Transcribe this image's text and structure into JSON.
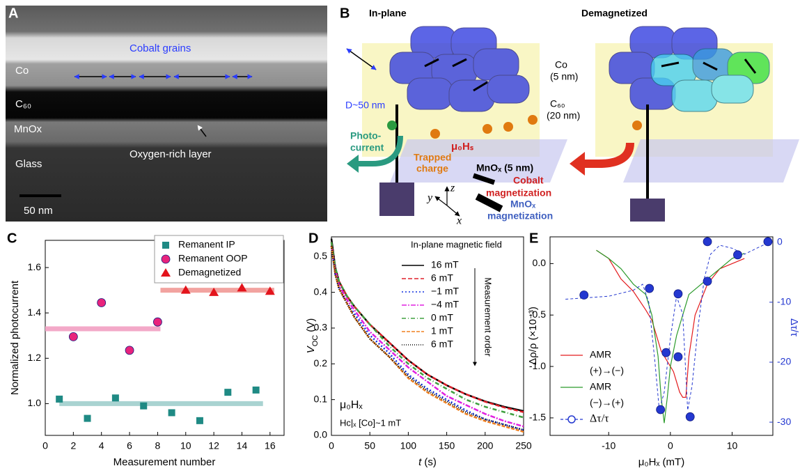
{
  "panel_a": {
    "label": "A",
    "grain_label": "Cobalt grains",
    "layers": [
      "Co",
      "C₆₀",
      "MnOx",
      "Glass"
    ],
    "oxygen_label": "Oxygen-rich layer",
    "scale_bar": "50 nm"
  },
  "panel_b": {
    "label": "B",
    "states": [
      "In-plane",
      "Demagnetized"
    ],
    "co_layer": [
      "Co",
      "(5 nm)"
    ],
    "grain_size": "D~50 nm",
    "c60_layer": [
      "C₆₀",
      "(20 nm)"
    ],
    "photocurrent": [
      "Photo-",
      "current"
    ],
    "trapped": [
      "Trapped",
      "charge"
    ],
    "field": "μ₀Hₛ",
    "mnox_layer": "MnOₓ (5 nm)",
    "cobalt_mag": [
      "Cobalt",
      "magnetization"
    ],
    "mnox_mag": [
      "MnOₓ",
      "magnetization"
    ],
    "axes": [
      "y",
      "z",
      "x"
    ]
  },
  "chart_data": [
    {
      "panel": "C",
      "type": "scatter",
      "xlabel": "Measurement number",
      "ylabel": "Normalized photocurrent",
      "xlim": [
        0,
        17
      ],
      "xticks": [
        0,
        2,
        4,
        6,
        8,
        10,
        12,
        14,
        16
      ],
      "ylim": [
        0.86,
        1.72
      ],
      "yticks": [
        {
          "value": 1,
          "label": "1.0"
        },
        1.2,
        1.4,
        1.6
      ],
      "legend": "upper right",
      "series": [
        {
          "name": "Remanent IP",
          "color": "#1f8a84",
          "marker": "square",
          "x": [
            1,
            3,
            5,
            7,
            9,
            11,
            13,
            15
          ],
          "values": [
            1.02,
            0.935,
            1.025,
            0.99,
            0.96,
            0.925,
            1.05,
            1.06
          ],
          "mean": 1.0,
          "mean_x": [
            1,
            15.5
          ],
          "mean_color": "#a9d3d1"
        },
        {
          "name": "Remanent OOP",
          "color": "#e8237c",
          "marker": "circle",
          "x": [
            2,
            4,
            6,
            8
          ],
          "values": [
            1.295,
            1.445,
            1.235,
            1.36
          ],
          "mean": 1.33,
          "mean_x": [
            0,
            8.2
          ],
          "mean_color": "#f3a9c8"
        },
        {
          "name": "Demagnetized",
          "color": "#e3141c",
          "marker": "triangle",
          "x": [
            10,
            12,
            14,
            16
          ],
          "values": [
            1.5,
            1.49,
            1.51,
            1.495
          ],
          "mean": 1.5,
          "mean_x": [
            8.2,
            16.3
          ],
          "mean_color": "#f2a3a0"
        }
      ]
    },
    {
      "panel": "D",
      "type": "line",
      "title": "In-plane magnetic field",
      "annotations": [
        "Measurement order",
        "μ₀Hₓ",
        "Hc|ₓ [Co]~1 mT"
      ],
      "xlabel": {
        "text": "t",
        "unit": "(s)"
      },
      "ylabel": {
        "text": "V",
        "sub": "OC",
        "unit": "(V)"
      },
      "xlim": [
        0,
        250
      ],
      "xticks": [
        0,
        50,
        100,
        150,
        200,
        250
      ],
      "ylim": [
        0,
        0.555
      ],
      "yticks": [
        {
          "value": 0,
          "label": "0.0"
        },
        0.1,
        0.2,
        0.3,
        0.4,
        0.5
      ],
      "legend": "upper right",
      "x": [
        0,
        5,
        10,
        20,
        30,
        50,
        75,
        100,
        125,
        150,
        175,
        200,
        225,
        250
      ],
      "series": [
        {
          "name": "16 mT",
          "color": "#000000",
          "dash": "none",
          "values": [
            0.55,
            0.47,
            0.43,
            0.39,
            0.36,
            0.31,
            0.26,
            0.21,
            0.17,
            0.14,
            0.115,
            0.095,
            0.08,
            0.068
          ]
        },
        {
          "name": "6 mT",
          "color": "#e0202a",
          "dash": "6,3",
          "values": [
            0.54,
            0.46,
            0.43,
            0.39,
            0.36,
            0.31,
            0.26,
            0.21,
            0.17,
            0.14,
            0.115,
            0.094,
            0.078,
            0.065
          ]
        },
        {
          "name": "−1 mT",
          "color": "#1030e0",
          "dash": "2,3",
          "values": [
            0.53,
            0.45,
            0.41,
            0.37,
            0.34,
            0.28,
            0.23,
            0.17,
            0.13,
            0.1,
            0.07,
            0.045,
            0.03,
            0.015
          ]
        },
        {
          "name": "−4 mT",
          "color": "#e020e0",
          "dash": "7,2,2,2",
          "values": [
            0.53,
            0.46,
            0.42,
            0.38,
            0.35,
            0.29,
            0.24,
            0.19,
            0.15,
            0.11,
            0.085,
            0.06,
            0.04,
            0.025
          ]
        },
        {
          "name": "0 mT",
          "color": "#40a040",
          "dash": "6,3,1,3",
          "values": [
            0.54,
            0.47,
            0.43,
            0.39,
            0.36,
            0.31,
            0.25,
            0.2,
            0.16,
            0.13,
            0.1,
            0.08,
            0.065,
            0.05
          ]
        },
        {
          "name": "1 mT",
          "color": "#f08020",
          "dash": "5,2",
          "values": [
            0.53,
            0.45,
            0.41,
            0.37,
            0.33,
            0.27,
            0.22,
            0.16,
            0.12,
            0.09,
            0.06,
            0.04,
            0.025,
            0.01
          ]
        },
        {
          "name": "6 mT",
          "color": "#000000",
          "dash": "1,2",
          "values": [
            0.53,
            0.45,
            0.41,
            0.37,
            0.33,
            0.27,
            0.22,
            0.165,
            0.125,
            0.095,
            0.065,
            0.045,
            0.03,
            0.015
          ]
        }
      ]
    },
    {
      "panel": "E",
      "type": "line",
      "xlabel": "μ₀Hₓ (mT)",
      "ylabel": "Δρ/ρ (×10⁻³)",
      "y2label": "Δτ/τ",
      "xlim": [
        -19.5,
        16.6
      ],
      "xticks": [
        -10,
        0,
        10
      ],
      "ylim": [
        -1.67,
        0.26
      ],
      "yticks": [
        {
          "value": 0,
          "label": "0.0"
        },
        -0.5,
        {
          "value": -1,
          "label": "-1.0"
        },
        -1.5
      ],
      "y2lim": [
        -32.2,
        0.9
      ],
      "y2ticks": [
        0,
        -10,
        -20,
        -30
      ],
      "legend": "lower left",
      "x": [
        -12,
        -10,
        -8,
        -6,
        -4,
        -3,
        -2,
        -1.5,
        -1,
        -0.5,
        0,
        0.5,
        1,
        1.5,
        2,
        2.5,
        3,
        4,
        6,
        8,
        10,
        12
      ],
      "series": [
        {
          "name": "AMR",
          "direction": "(+)→(−)",
          "color": "#e31a1c",
          "values": [
            0.13,
            0.05,
            -0.15,
            -0.27,
            -0.45,
            -0.55,
            -0.75,
            -0.85,
            -0.9,
            -0.95,
            -1.0,
            -1.05,
            -1.15,
            -1.25,
            -1.3,
            -1.3,
            -0.9,
            -0.5,
            -0.2,
            -0.05,
            0.0,
            0.05
          ]
        },
        {
          "name": "AMR",
          "direction": "(−)→(+)",
          "color": "#2a9a2a",
          "values": [
            0.13,
            0.05,
            -0.05,
            -0.2,
            -0.3,
            -0.5,
            -0.9,
            -1.3,
            -1.55,
            -1.3,
            -1.0,
            -0.85,
            -0.7,
            -0.6,
            -0.5,
            -0.4,
            -0.3,
            -0.25,
            -0.15,
            -0.05,
            0.05,
            0.1
          ]
        },
        {
          "name": "Δτ/τ",
          "color": "#2438d0",
          "axis": "y2",
          "marker": "circle",
          "x": [
            -14,
            -3.4,
            -1.6,
            -0.7,
            1.25,
            1.25,
            3.2,
            6,
            6,
            10.9,
            15.8
          ],
          "values": [
            -8.8,
            -7.7,
            -27.9,
            -18.4,
            -8.6,
            -19.1,
            -29.1,
            0.1,
            -6.5,
            -2.1,
            0.1
          ],
          "fit_x": [
            -17,
            -10,
            -6,
            -4.5,
            -3.5,
            -2.5,
            -1.8,
            -1,
            0,
            1,
            2,
            2.8,
            3.5,
            4.5,
            5.5,
            6.5,
            8,
            10,
            12,
            16
          ],
          "fit_values": [
            -9.5,
            -9,
            -8,
            -7,
            -10,
            -20,
            -28,
            -25,
            -16,
            -9,
            -12,
            -28,
            -24,
            -14,
            -6,
            -2,
            -0.5,
            -1,
            -2,
            0
          ]
        }
      ]
    }
  ]
}
